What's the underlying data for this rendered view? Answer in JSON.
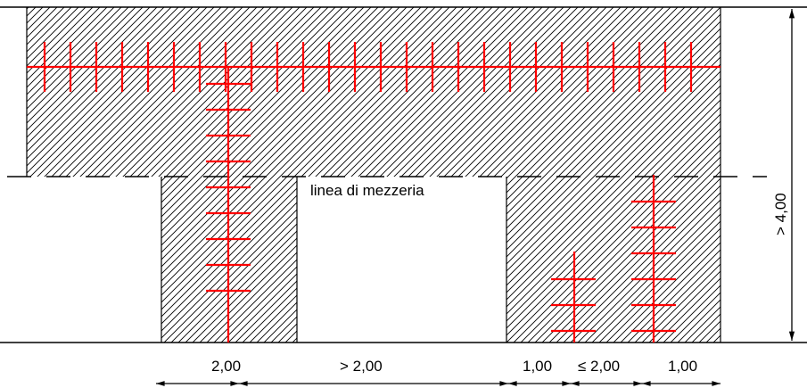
{
  "colors": {
    "hatch_lines": "#000000",
    "ground_lines": "#000000",
    "trench_marks": "#ff0000"
  },
  "labels": {
    "centerline": "linea di mezzeria",
    "height": "> 4,00",
    "dims": [
      "2,00",
      "> 2,00",
      "1,00",
      "≤ 2,00",
      "1,00"
    ]
  }
}
